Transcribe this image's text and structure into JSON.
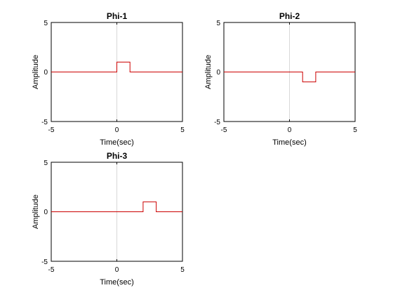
{
  "chart_data": [
    {
      "type": "line",
      "title": "Phi-1",
      "xlabel": "Time(sec)",
      "ylabel": "Amplitude",
      "xlim": [
        -5,
        5
      ],
      "ylim": [
        -5,
        5
      ],
      "xticks": [
        "-5",
        "0",
        "5"
      ],
      "yticks": [
        "5",
        "0",
        "-5"
      ],
      "grid": false,
      "reference_line_x": 0,
      "series_color": "#cc0000",
      "x": [
        -5,
        0,
        0,
        1,
        1,
        5
      ],
      "y": [
        0,
        0,
        1,
        1,
        0,
        0
      ]
    },
    {
      "type": "line",
      "title": "Phi-2",
      "xlabel": "Time(sec)",
      "ylabel": "Amplitude",
      "xlim": [
        -5,
        5
      ],
      "ylim": [
        -5,
        5
      ],
      "xticks": [
        "-5",
        "0",
        "5"
      ],
      "yticks": [
        "5",
        "0",
        "-5"
      ],
      "grid": false,
      "reference_line_x": 0,
      "series_color": "#cc0000",
      "x": [
        -5,
        1,
        1,
        2,
        2,
        5
      ],
      "y": [
        0,
        0,
        -1,
        -1,
        0,
        0
      ]
    },
    {
      "type": "line",
      "title": "Phi-3",
      "xlabel": "Time(sec)",
      "ylabel": "Amplitude",
      "xlim": [
        -5,
        5
      ],
      "ylim": [
        -5,
        5
      ],
      "xticks": [
        "-5",
        "0",
        "5"
      ],
      "yticks": [
        "5",
        "0",
        "-5"
      ],
      "grid": false,
      "reference_line_x": 0,
      "series_color": "#cc0000",
      "x": [
        -5,
        2,
        2,
        3,
        3,
        5
      ],
      "y": [
        0,
        0,
        1,
        1,
        0,
        0
      ]
    }
  ]
}
